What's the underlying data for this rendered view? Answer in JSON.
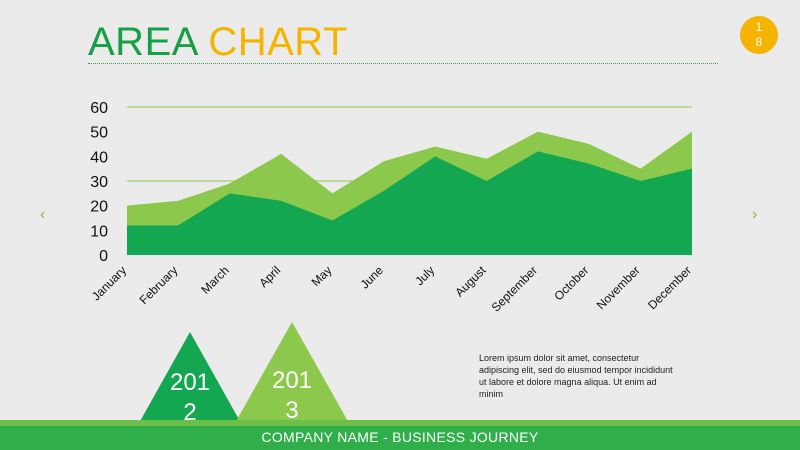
{
  "header": {
    "title_part1": "AREA",
    "title_part2": "CHART"
  },
  "page_badge": {
    "line1": "1",
    "line2": "8"
  },
  "nav": {
    "prev_icon": "chevron-left-icon",
    "next_icon": "chevron-right-icon",
    "prev_glyph": "‹",
    "next_glyph": "›"
  },
  "chart_data": {
    "type": "area",
    "categories": [
      "January",
      "February",
      "March",
      "April",
      "May",
      "June",
      "July",
      "August",
      "September",
      "October",
      "November",
      "December"
    ],
    "series": [
      {
        "values": [
          20,
          22,
          29,
          41,
          25,
          38,
          44,
          39,
          50,
          45,
          35,
          50
        ],
        "color": "#8cc84b"
      },
      {
        "values": [
          12,
          12,
          25,
          22,
          14,
          26,
          40,
          30,
          42,
          37,
          30,
          35
        ],
        "color": "#12a750"
      }
    ],
    "yticks": [
      0,
      10,
      20,
      30,
      40,
      50,
      60
    ],
    "ylim": [
      0,
      60
    ],
    "grid": "horizontal-lines",
    "title": "",
    "xlabel": "",
    "ylabel": ""
  },
  "badges": [
    {
      "line1": "201",
      "line2": "2",
      "color": "#12a750"
    },
    {
      "line1": "201",
      "line2": "3",
      "color": "#8cc84b"
    }
  ],
  "body_text": "Lorem ipsum dolor sit amet, consectetur adipiscing elit, sed do eiusmod tempor incididunt ut labore et dolore magna aliqua. Ut enim ad minim",
  "footer": {
    "text": "COMPANY NAME - BUSINESS JOURNEY"
  },
  "colors": {
    "green": "#16a046",
    "yellow": "#f4b400",
    "light_green": "#8cc84b",
    "footer": "#2fae4a"
  }
}
